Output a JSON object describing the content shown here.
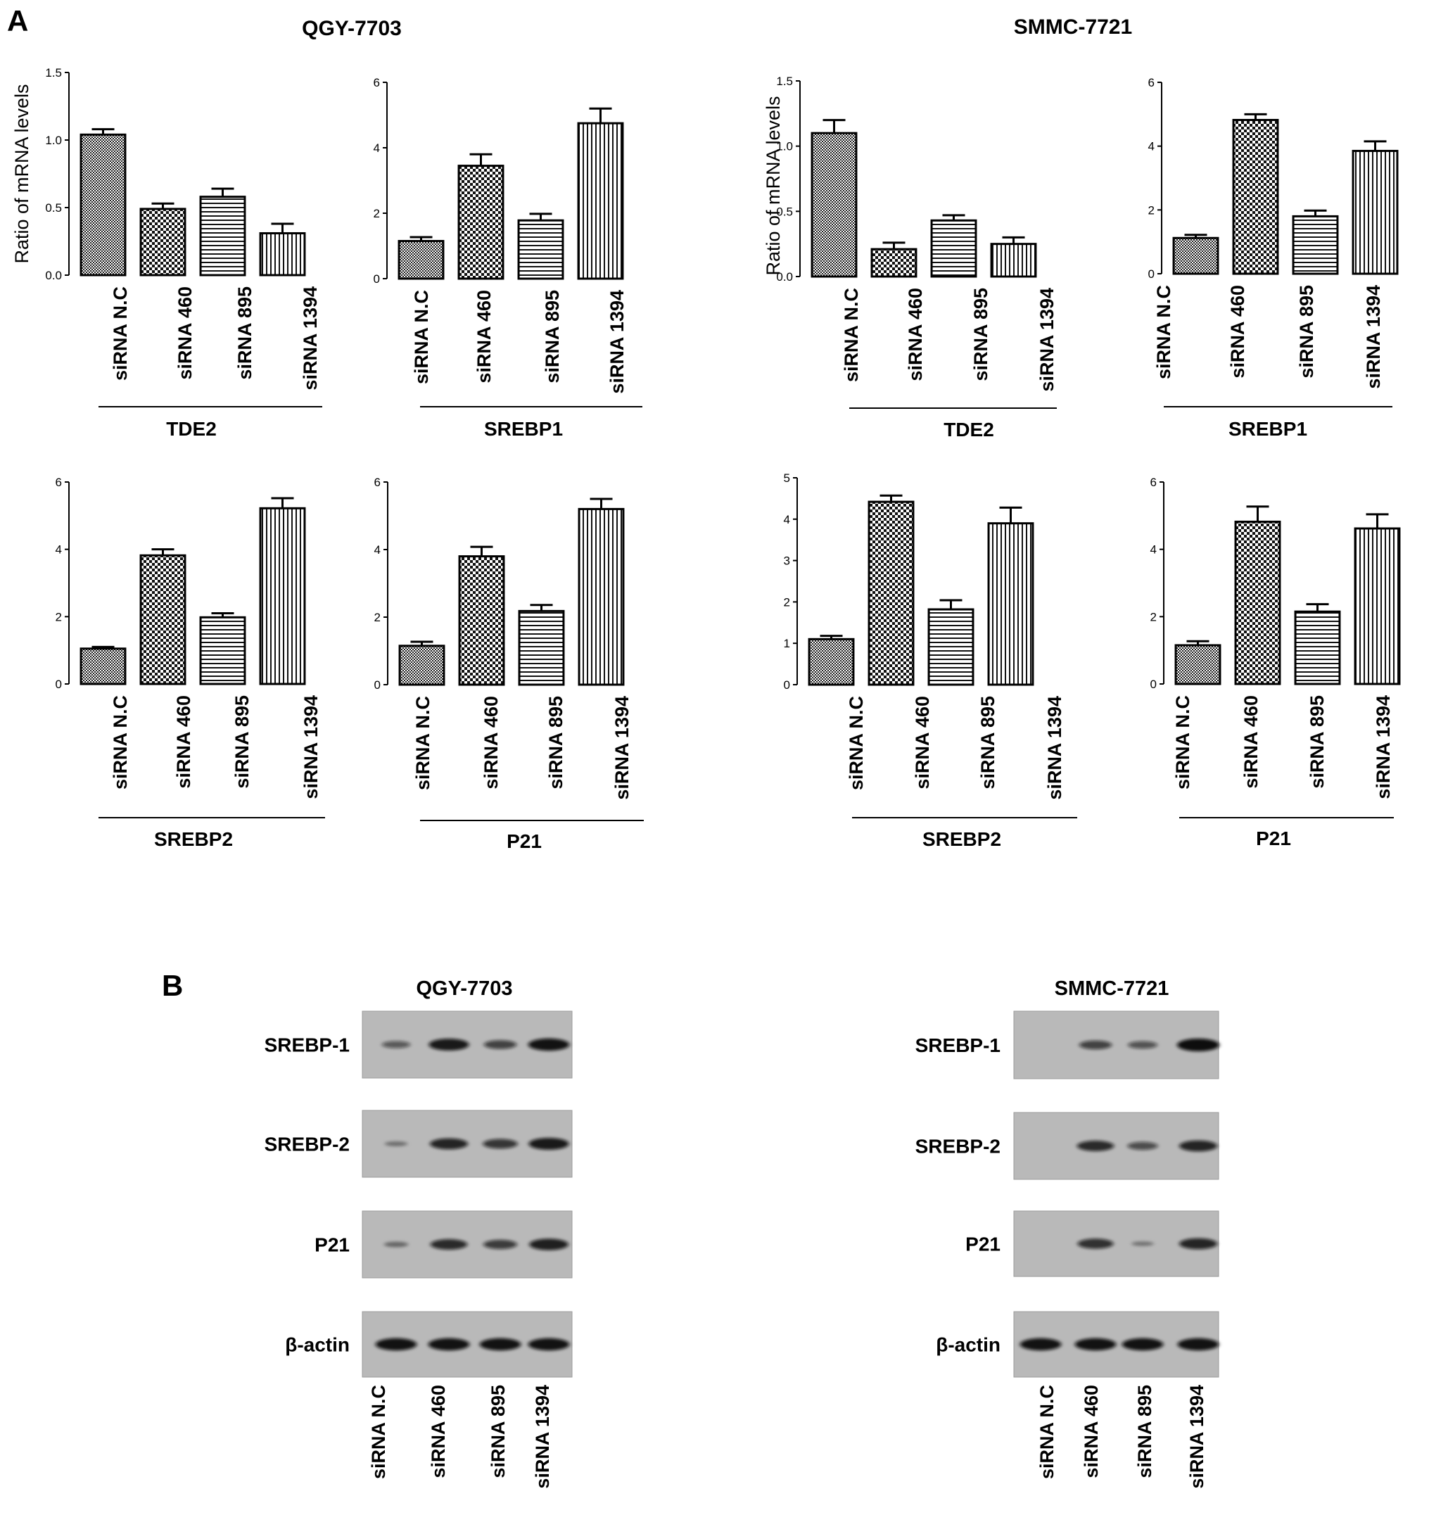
{
  "panel_a": {
    "letter": "A",
    "groups": [
      {
        "title": "QGY-7703"
      },
      {
        "title": "SMMC-7721"
      }
    ]
  },
  "panel_b": {
    "letter": "B",
    "blots": [
      {
        "title": "QGY-7703",
        "rows": [
          {
            "label": "SREBP-1",
            "intensity": [
              0.35,
              0.9,
              0.55,
              0.95
            ]
          },
          {
            "label": "SREBP-2",
            "intensity": [
              0.08,
              0.8,
              0.65,
              0.9
            ]
          },
          {
            "label": "P21",
            "intensity": [
              0.15,
              0.75,
              0.6,
              0.85
            ]
          },
          {
            "label": "β-actin",
            "intensity": [
              0.95,
              0.95,
              0.95,
              0.95
            ]
          }
        ],
        "lanes": [
          "siRNA N.C",
          "siRNA 460",
          "siRNA 895",
          "siRNA 1394"
        ]
      },
      {
        "title": "SMMC-7721",
        "rows": [
          {
            "label": "SREBP-1",
            "intensity": [
              0.0,
              0.55,
              0.4,
              1.0
            ]
          },
          {
            "label": "SREBP-2",
            "intensity": [
              0.0,
              0.75,
              0.45,
              0.8
            ]
          },
          {
            "label": "P21",
            "intensity": [
              0.0,
              0.7,
              0.05,
              0.8
            ]
          },
          {
            "label": "β-actin",
            "intensity": [
              0.95,
              0.95,
              0.95,
              0.95
            ]
          }
        ],
        "lanes": [
          "siRNA N.C",
          "siRNA 460",
          "siRNA 895",
          "siRNA 1394"
        ]
      }
    ]
  },
  "chart_data": [
    {
      "type": "bar",
      "cell_line": "QGY-7703",
      "gene": "TDE2",
      "ylabel": "Ratio of mRNA levels",
      "categories": [
        "siRNA N.C",
        "siRNA 460",
        "siRNA 895",
        "siRNA 1394"
      ],
      "values": [
        1.04,
        0.49,
        0.58,
        0.31
      ],
      "errors": [
        0.04,
        0.04,
        0.06,
        0.07
      ],
      "ylim": [
        0,
        1.5
      ],
      "yticks": [
        "0.0",
        "0.5",
        "1.0",
        "1.5"
      ]
    },
    {
      "type": "bar",
      "cell_line": "QGY-7703",
      "gene": "SREBP1",
      "ylabel": "",
      "categories": [
        "siRNA N.C",
        "siRNA 460",
        "siRNA 895",
        "siRNA 1394"
      ],
      "values": [
        1.15,
        3.45,
        1.78,
        4.75
      ],
      "errors": [
        0.12,
        0.35,
        0.2,
        0.45
      ],
      "ylim": [
        0,
        6
      ],
      "yticks": [
        "0",
        "2",
        "4",
        "6"
      ]
    },
    {
      "type": "bar",
      "cell_line": "SMMC-7721",
      "gene": "TDE2",
      "ylabel": "Ratio of mRNA levels",
      "categories": [
        "siRNA N.C",
        "siRNA 460",
        "siRNA 895",
        "siRNA 1394"
      ],
      "values": [
        1.1,
        0.21,
        0.43,
        0.25
      ],
      "errors": [
        0.1,
        0.05,
        0.04,
        0.05
      ],
      "ylim": [
        0,
        1.5
      ],
      "yticks": [
        "0.0",
        "0.5",
        "1.0",
        "1.5"
      ]
    },
    {
      "type": "bar",
      "cell_line": "SMMC-7721",
      "gene": "SREBP1",
      "ylabel": "",
      "categories": [
        "siRNA N.C",
        "siRNA 460",
        "siRNA 895",
        "siRNA 1394"
      ],
      "values": [
        1.12,
        4.82,
        1.8,
        3.85
      ],
      "errors": [
        0.1,
        0.18,
        0.18,
        0.3
      ],
      "ylim": [
        0,
        6
      ],
      "yticks": [
        "0",
        "2",
        "4",
        "6"
      ]
    },
    {
      "type": "bar",
      "cell_line": "QGY-7703",
      "gene": "SREBP2",
      "ylabel": "",
      "categories": [
        "siRNA N.C",
        "siRNA 460",
        "siRNA 895",
        "siRNA 1394"
      ],
      "values": [
        1.05,
        3.82,
        1.98,
        5.22
      ],
      "errors": [
        0.05,
        0.18,
        0.12,
        0.3
      ],
      "ylim": [
        0,
        6
      ],
      "yticks": [
        "0",
        "2",
        "4",
        "6"
      ]
    },
    {
      "type": "bar",
      "cell_line": "QGY-7703",
      "gene": "P21",
      "ylabel": "",
      "categories": [
        "siRNA N.C",
        "siRNA 460",
        "siRNA 895",
        "siRNA 1394"
      ],
      "values": [
        1.15,
        3.8,
        2.18,
        5.2
      ],
      "errors": [
        0.12,
        0.28,
        0.18,
        0.3
      ],
      "ylim": [
        0,
        6
      ],
      "yticks": [
        "0",
        "2",
        "4",
        "6"
      ]
    },
    {
      "type": "bar",
      "cell_line": "SMMC-7721",
      "gene": "SREBP2",
      "ylabel": "",
      "categories": [
        "siRNA N.C",
        "siRNA 460",
        "siRNA 895",
        "siRNA 1394"
      ],
      "values": [
        1.1,
        4.42,
        1.82,
        3.9
      ],
      "errors": [
        0.08,
        0.15,
        0.22,
        0.38
      ],
      "ylim": [
        0,
        5
      ],
      "yticks": [
        "0",
        "1",
        "2",
        "3",
        "4",
        "5"
      ]
    },
    {
      "type": "bar",
      "cell_line": "SMMC-7721",
      "gene": "P21",
      "ylabel": "",
      "categories": [
        "siRNA N.C",
        "siRNA 460",
        "siRNA 895",
        "siRNA 1394"
      ],
      "values": [
        1.15,
        4.82,
        2.15,
        4.62
      ],
      "errors": [
        0.12,
        0.45,
        0.22,
        0.42
      ],
      "ylim": [
        0,
        6
      ],
      "yticks": [
        "0",
        "2",
        "4",
        "6"
      ]
    }
  ]
}
